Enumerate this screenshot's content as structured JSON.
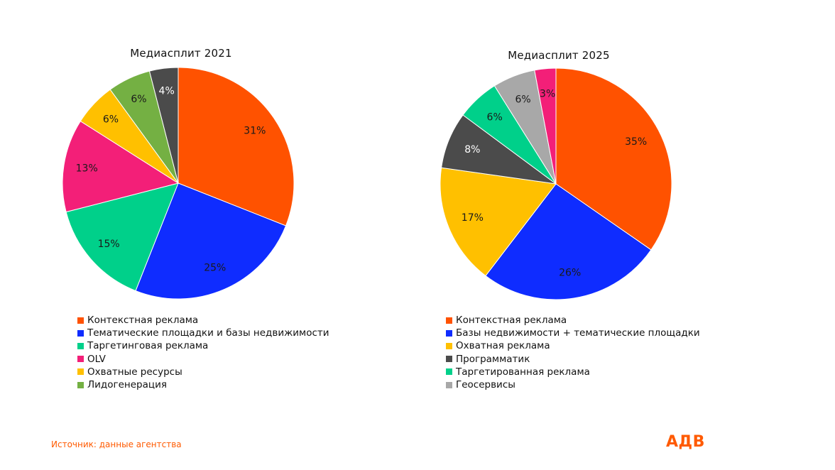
{
  "chart_data": [
    {
      "type": "pie",
      "title": "Медиасплит 2021",
      "slices": [
        {
          "name": "Контекстная реклама",
          "value": 31,
          "label": "31%",
          "color": "#ff5200"
        },
        {
          "name": "Тематические площадки и базы недвижимости",
          "value": 25,
          "label": "25%",
          "color": "#0f2cff"
        },
        {
          "name": "Таргетинговая реклама",
          "value": 15,
          "label": "15%",
          "color": "#00d08a"
        },
        {
          "name": "OLV",
          "value": 13,
          "label": "13%",
          "color": "#f31f78"
        },
        {
          "name": "Охватные ресурсы",
          "value": 6,
          "label": "6%",
          "color": "#ffc000"
        },
        {
          "name": "Лидогенерация",
          "value": 6,
          "label": "6%",
          "color": "#74b043"
        },
        {
          "name": "",
          "value": 4,
          "label": "4%",
          "color": "#4b4b4b"
        }
      ],
      "legend": [
        {
          "label": "Контекстная реклама",
          "color": "#ff5200"
        },
        {
          "label": "Тематические площадки и базы недвижимости",
          "color": "#0f2cff"
        },
        {
          "label": "Таргетинговая реклама",
          "color": "#00d08a"
        },
        {
          "label": "OLV",
          "color": "#f31f78"
        },
        {
          "label": "Охватные ресурсы",
          "color": "#ffc000"
        },
        {
          "label": "Лидогенерация",
          "color": "#74b043"
        }
      ]
    },
    {
      "type": "pie",
      "title": "Медиасплит 2025",
      "slices": [
        {
          "name": "Контекстная реклама",
          "value": 35,
          "label": "35%",
          "color": "#ff5200"
        },
        {
          "name": "Базы недвижимости + тематические площадки",
          "value": 26,
          "label": "26%",
          "color": "#0f2cff"
        },
        {
          "name": "Охватная реклама",
          "value": 17,
          "label": "17%",
          "color": "#ffc000"
        },
        {
          "name": "Программатик",
          "value": 8,
          "label": "8%",
          "color": "#4b4b4b"
        },
        {
          "name": "Таргетированная реклама",
          "value": 6,
          "label": "6%",
          "color": "#00d08a"
        },
        {
          "name": "Геосервисы",
          "value": 6,
          "label": "6%",
          "color": "#a8a8a8"
        },
        {
          "name": "",
          "value": 3,
          "label": "3%",
          "color": "#f31f78"
        }
      ],
      "legend": [
        {
          "label": "Контекстная реклама",
          "color": "#ff5200"
        },
        {
          "label": "Базы недвижимости + тематические площадки",
          "color": "#0f2cff"
        },
        {
          "label": "Охватная реклама",
          "color": "#ffc000"
        },
        {
          "label": "Программатик",
          "color": "#4b4b4b"
        },
        {
          "label": "Таргетированная реклама",
          "color": "#00d08a"
        },
        {
          "label": "Геосервисы",
          "color": "#a8a8a8"
        }
      ]
    }
  ],
  "footer": {
    "source": "Источник: данные агентства",
    "logo": "АДВ"
  },
  "colors": {
    "accent": "#ff5a00"
  }
}
